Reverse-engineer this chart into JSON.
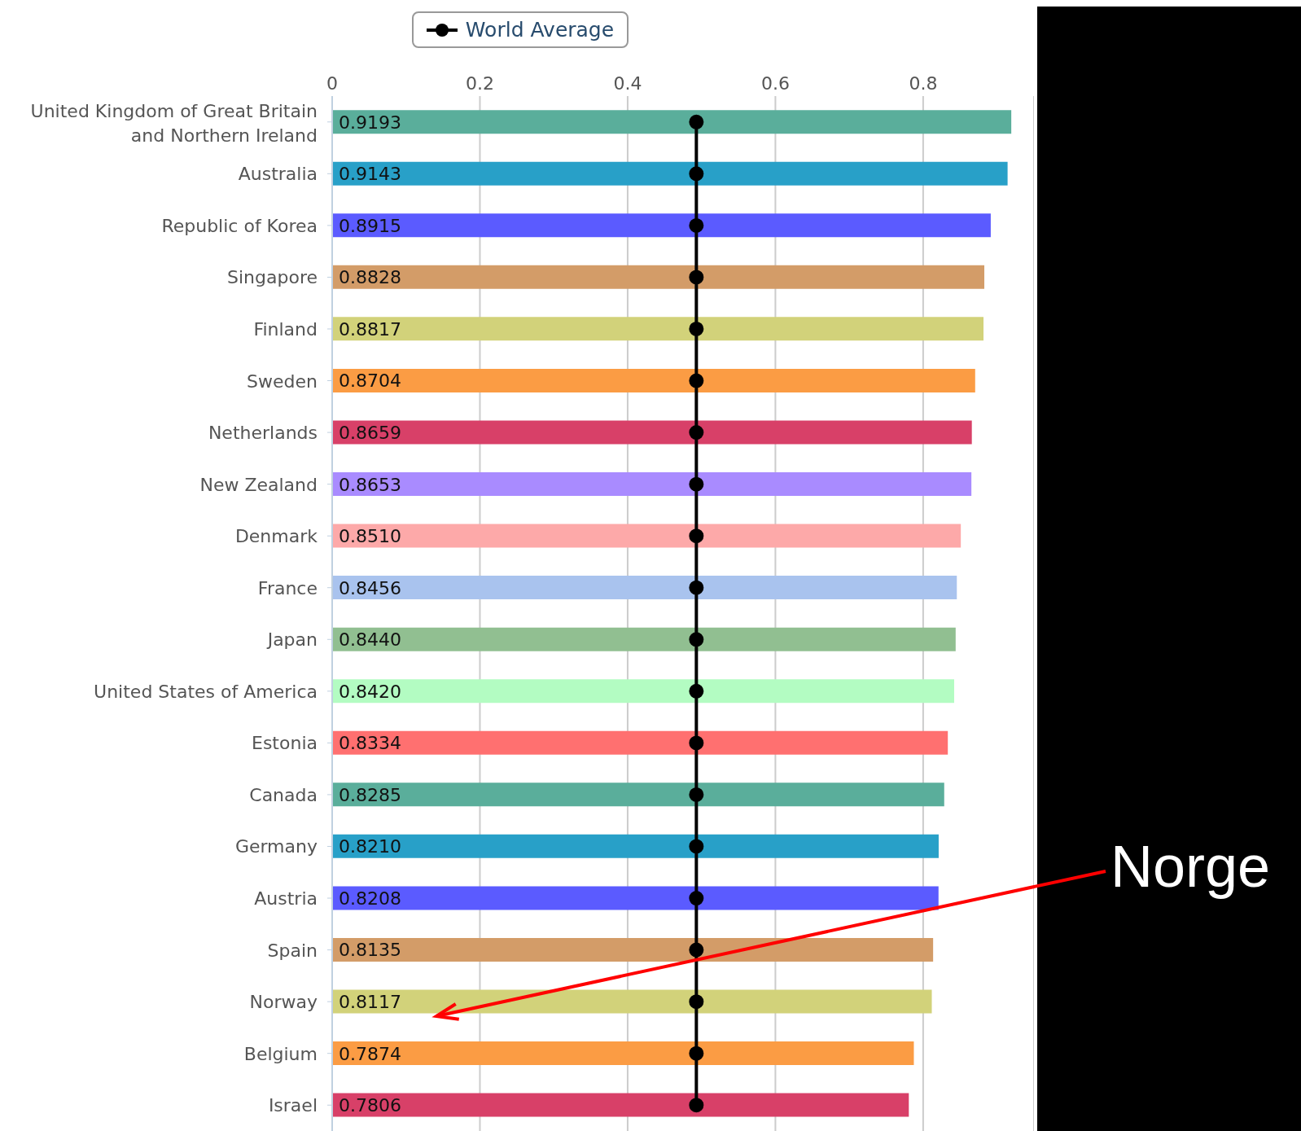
{
  "chart_data": {
    "type": "bar",
    "orientation": "horizontal",
    "categories": [
      "United Kingdom of Great Britain and Northern Ireland",
      "Australia",
      "Republic of Korea",
      "Singapore",
      "Finland",
      "Sweden",
      "Netherlands",
      "New Zealand",
      "Denmark",
      "France",
      "Japan",
      "United States of America",
      "Estonia",
      "Canada",
      "Germany",
      "Austria",
      "Spain",
      "Norway",
      "Belgium",
      "Israel"
    ],
    "series": [
      {
        "values": [
          0.9193,
          0.9143,
          0.8915,
          0.8828,
          0.8817,
          0.8704,
          0.8659,
          0.8653,
          0.851,
          0.8456,
          0.844,
          0.842,
          0.8334,
          0.8285,
          0.821,
          0.8208,
          0.8135,
          0.8117,
          0.7874,
          0.7806
        ],
        "value_labels": [
          "0.9193",
          "0.9143",
          "0.8915",
          "0.8828",
          "0.8817",
          "0.8704",
          "0.8659",
          "0.8653",
          "0.8510",
          "0.8456",
          "0.8440",
          "0.8420",
          "0.8334",
          "0.8285",
          "0.8210",
          "0.8208",
          "0.8135",
          "0.8117",
          "0.7874",
          "0.7806"
        ],
        "colors": [
          "#5aae9b",
          "#28a0c8",
          "#5b5bff",
          "#d39c68",
          "#d2d27a",
          "#fb9c44",
          "#d84068",
          "#a98bff",
          "#fda9a9",
          "#a9c3ee",
          "#91bf91",
          "#b3fcc2",
          "#ff7070",
          "#5aae9b",
          "#28a0c8",
          "#5b5bff",
          "#d39c68",
          "#d2d27a",
          "#fb9c44",
          "#d84068"
        ]
      },
      {
        "type": "line",
        "name": "World Average",
        "color": "#000000",
        "marker": "circle",
        "values": [
          0.493,
          0.493,
          0.493,
          0.493,
          0.493,
          0.493,
          0.493,
          0.493,
          0.493,
          0.493,
          0.493,
          0.493,
          0.493,
          0.493,
          0.493,
          0.493,
          0.493,
          0.493,
          0.493,
          0.493
        ]
      }
    ],
    "xlim": [
      0,
      0.95
    ],
    "xticks": [
      0,
      0.2,
      0.4,
      0.6,
      0.8
    ],
    "grid": "x",
    "legend": "top",
    "annotations": [
      "Norge"
    ]
  }
}
